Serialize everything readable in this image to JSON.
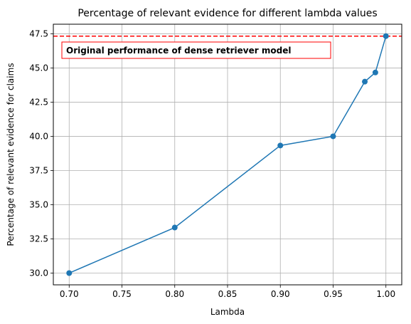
{
  "chart_data": {
    "type": "line",
    "title": "Percentage of relevant evidence for different lambda values",
    "xlabel": "Lambda",
    "ylabel": "Percentage of relevant evidence for claims",
    "x": [
      0.7,
      0.8,
      0.9,
      0.95,
      0.98,
      0.99,
      1.0
    ],
    "series": [
      {
        "values": [
          30.0,
          33.33,
          39.33,
          40.0,
          44.0,
          44.67,
          47.33
        ],
        "color": "#1f77b4"
      }
    ],
    "xlim": [
      0.685,
      1.015
    ],
    "ylim": [
      29.14,
      48.2
    ],
    "xticks": [
      0.7,
      0.75,
      0.8,
      0.85,
      0.9,
      0.95,
      1.0
    ],
    "xtick_labels": [
      "0.70",
      "0.75",
      "0.80",
      "0.85",
      "0.90",
      "0.95",
      "1.00"
    ],
    "yticks": [
      30.0,
      32.5,
      35.0,
      37.5,
      40.0,
      42.5,
      45.0,
      47.5
    ],
    "ytick_labels": [
      "30.0",
      "32.5",
      "35.0",
      "37.5",
      "40.0",
      "42.5",
      "45.0",
      "47.5"
    ],
    "grid": true,
    "reference_line": {
      "y": 47.33,
      "color": "#ff0000",
      "style": "dashed"
    },
    "annotation": {
      "text": "Original performance of dense retriever model",
      "border_color": "#ff0000"
    }
  }
}
